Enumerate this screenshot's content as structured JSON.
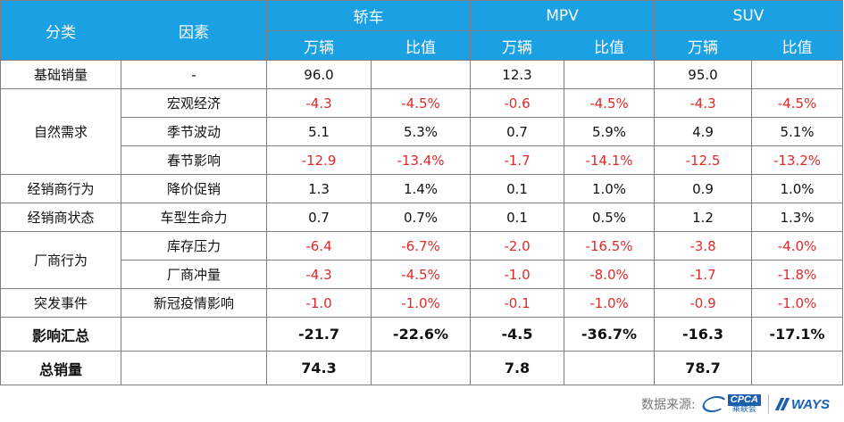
{
  "header": {
    "category": "分类",
    "factor": "因素",
    "groups": [
      "轿车",
      "MPV",
      "SUV"
    ],
    "sub": [
      "万辆",
      "比值",
      "万辆",
      "比值",
      "万辆",
      "比值"
    ]
  },
  "rows": {
    "base": {
      "category": "基础销量",
      "factor": "-",
      "values": [
        "96.0",
        "",
        "12.3",
        "",
        "95.0",
        ""
      ]
    },
    "natural": {
      "category": "自然需求",
      "items": [
        {
          "factor": "宏观经济",
          "values": [
            "-4.3",
            "-4.5%",
            "-0.6",
            "-4.5%",
            "-4.3",
            "-4.5%"
          ]
        },
        {
          "factor": "季节波动",
          "values": [
            "5.1",
            "5.3%",
            "0.7",
            "5.9%",
            "4.9",
            "5.1%"
          ]
        },
        {
          "factor": "春节影响",
          "values": [
            "-12.9",
            "-13.4%",
            "-1.7",
            "-14.1%",
            "-12.5",
            "-13.2%"
          ]
        }
      ]
    },
    "dealer_behavior": {
      "category": "经销商行为",
      "factor": "降价促销",
      "values": [
        "1.3",
        "1.4%",
        "0.1",
        "1.0%",
        "0.9",
        "1.0%"
      ]
    },
    "dealer_status": {
      "category": "经销商状态",
      "factor": "车型生命力",
      "values": [
        "0.7",
        "0.7%",
        "0.1",
        "0.5%",
        "1.2",
        "1.3%"
      ]
    },
    "maker": {
      "category": "厂商行为",
      "items": [
        {
          "factor": "库存压力",
          "values": [
            "-6.4",
            "-6.7%",
            "-2.0",
            "-16.5%",
            "-3.8",
            "-4.0%"
          ]
        },
        {
          "factor": "厂商冲量",
          "values": [
            "-4.3",
            "-4.5%",
            "-1.0",
            "-8.0%",
            "-1.7",
            "-1.8%"
          ]
        }
      ]
    },
    "sudden": {
      "category": "突发事件",
      "factor": "新冠疫情影响",
      "values": [
        "-1.0",
        "-1.0%",
        "-0.1",
        "-1.0%",
        "-0.9",
        "-1.0%"
      ]
    },
    "summary": {
      "category": "影响汇总",
      "values": [
        "-21.7",
        "-22.6%",
        "-4.5",
        "-36.7%",
        "-16.3",
        "-17.1%"
      ]
    },
    "total": {
      "category": "总销量",
      "values": [
        "74.3",
        "",
        "7.8",
        "",
        "78.7",
        ""
      ]
    }
  },
  "colors": {
    "header_bg": "#1aa0e3",
    "negative": "#e0292b",
    "border": "#7f7f7f"
  },
  "footer": {
    "source_label": "数据来源:",
    "cpca_text": "CPCA",
    "cpca_sub": "乘联会",
    "ways_text": "WAYS",
    "icons": [
      "cpca-logo-icon",
      "ways-logo-icon"
    ]
  }
}
